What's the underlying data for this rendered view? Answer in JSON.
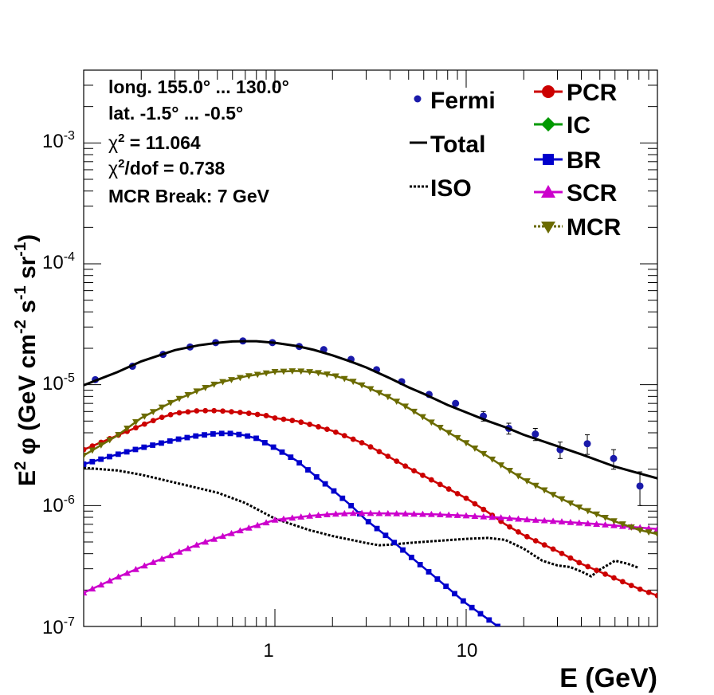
{
  "chart_data": {
    "type": "scatter",
    "xlabel": "E (GeV)",
    "ylabel": {
      "main": "E",
      "sup1": "2",
      "mid": " φ (GeV cm",
      "sup2": "-2",
      "mid2": " s",
      "sup3": "-1",
      "mid3": " sr",
      "sup4": "-1",
      "end": ")"
    },
    "xscale": "log",
    "yscale": "log",
    "xlim": [
      0.1,
      100
    ],
    "ylim": [
      1e-07,
      0.004
    ],
    "x_ticks": [
      {
        "value": 1,
        "label": "1"
      },
      {
        "value": 10,
        "label": "10"
      }
    ],
    "y_ticks": [
      {
        "value": 1e-07,
        "base": "10",
        "exp": "-7"
      },
      {
        "value": 1e-06,
        "base": "10",
        "exp": "-6"
      },
      {
        "value": 1e-05,
        "base": "10",
        "exp": "-5"
      },
      {
        "value": 0.0001,
        "base": "10",
        "exp": "-4"
      },
      {
        "value": 0.001,
        "base": "10",
        "exp": "-3"
      }
    ],
    "info": {
      "long": "long. 155.0° ... 130.0°",
      "lat": "lat. -1.5° ... -0.5°",
      "chi2_sym": "χ",
      "chi2_sup": "2",
      "chi2_rest": " = 11.064",
      "chidof_sym": "χ",
      "chidof_sup": "2",
      "chidof_rest": "/dof = 0.738",
      "mcr_break": "MCR Break:  7 GeV"
    },
    "legend_left": [
      {
        "label": "Fermi"
      },
      {
        "label": "Total"
      },
      {
        "label": "ISO"
      }
    ],
    "legend_right": [
      {
        "label": "PCR"
      },
      {
        "label": "IC"
      },
      {
        "label": "BR"
      },
      {
        "label": "SCR"
      },
      {
        "label": "MCR"
      }
    ],
    "series": [
      {
        "name": "Fermi",
        "color": "#1a1aaa",
        "points": [
          {
            "x": 0.115,
            "y": 1.1e-05,
            "err": 0
          },
          {
            "x": 0.18,
            "y": 1.42e-05,
            "err": 0
          },
          {
            "x": 0.26,
            "y": 1.78e-05,
            "err": 0
          },
          {
            "x": 0.36,
            "y": 2.05e-05,
            "err": 0
          },
          {
            "x": 0.49,
            "y": 2.23e-05,
            "err": 0
          },
          {
            "x": 0.68,
            "y": 2.3e-05,
            "err": 0
          },
          {
            "x": 0.97,
            "y": 2.23e-05,
            "err": 0
          },
          {
            "x": 1.34,
            "y": 2.07e-05,
            "err": 0
          },
          {
            "x": 1.8,
            "y": 1.95e-05,
            "err": 0
          },
          {
            "x": 2.5,
            "y": 1.62e-05,
            "err": 0
          },
          {
            "x": 3.4,
            "y": 1.33e-05,
            "err": 0
          },
          {
            "x": 4.6,
            "y": 1.06e-05,
            "err": 0
          },
          {
            "x": 6.4,
            "y": 8.3e-06,
            "err": 0
          },
          {
            "x": 8.8,
            "y": 7e-06,
            "err": 3e-07
          },
          {
            "x": 12.3,
            "y": 5.5e-06,
            "err": 5e-07
          },
          {
            "x": 16.7,
            "y": 4.35e-06,
            "err": 4.5e-07
          },
          {
            "x": 23.0,
            "y": 3.9e-06,
            "err": 4.5e-07
          },
          {
            "x": 31.0,
            "y": 2.9e-06,
            "err": 4.5e-07
          },
          {
            "x": 43.0,
            "y": 3.25e-06,
            "err": 6e-07
          },
          {
            "x": 59.0,
            "y": 2.45e-06,
            "err": 4.5e-07
          },
          {
            "x": 81.0,
            "y": 1.45e-06,
            "err": 4.5e-07
          }
        ]
      },
      {
        "name": "Total",
        "color": "#000000",
        "marker": "none",
        "x": [
          0.1,
          0.15,
          0.2,
          0.3,
          0.4,
          0.5,
          0.6,
          0.7,
          0.8,
          1.0,
          1.3,
          1.6,
          2.0,
          2.5,
          3.0,
          4.0,
          5.0,
          6.0,
          8.0,
          10,
          13,
          16,
          20,
          30,
          40,
          60,
          80,
          100
        ],
        "y": [
          9.9e-06,
          1.27e-05,
          1.56e-05,
          1.93e-05,
          2.12e-05,
          2.22e-05,
          2.28e-05,
          2.29e-05,
          2.29e-05,
          2.22e-05,
          2.09e-05,
          1.94e-05,
          1.75e-05,
          1.55e-05,
          1.39e-05,
          1.13e-05,
          9.5e-06,
          8.4e-06,
          6.8e-06,
          5.9e-06,
          5e-06,
          4.45e-06,
          3.85e-06,
          3.1e-06,
          2.65e-06,
          2.1e-06,
          1.85e-06,
          1.68e-06
        ]
      },
      {
        "name": "ISO",
        "color": "#000000",
        "marker": "none",
        "dash": "3,2",
        "x": [
          0.1,
          0.15,
          0.2,
          0.3,
          0.5,
          0.7,
          1.0,
          1.5,
          2.0,
          3.0,
          3.5,
          4.0,
          5.0,
          7.0,
          10.0,
          13.0,
          16.0,
          20.0,
          25.0,
          30.0,
          35.0,
          40.0,
          45.0,
          50.0,
          60.0,
          70.0,
          80.0
        ],
        "y": [
          2.05e-06,
          1.95e-06,
          1.8e-06,
          1.55e-06,
          1.28e-06,
          1.05e-06,
          7.8e-07,
          6.3e-07,
          5.6e-07,
          4.9e-07,
          4.7e-07,
          4.75e-07,
          4.9e-07,
          5.1e-07,
          5.3e-07,
          5.4e-07,
          5.2e-07,
          4.4e-07,
          3.5e-07,
          3.2e-07,
          3.1e-07,
          2.85e-07,
          2.6e-07,
          2.95e-07,
          3.5e-07,
          3.3e-07,
          3.05e-07
        ]
      },
      {
        "name": "PCR",
        "color": "#cc0000",
        "marker": "circle",
        "x": [
          0.1,
          0.15,
          0.2,
          0.25,
          0.3,
          0.4,
          0.5,
          0.7,
          0.9,
          1.0,
          1.3,
          1.6,
          2.0,
          2.5,
          3.0,
          4.0,
          5.0,
          7.0,
          10,
          13,
          16,
          20,
          30,
          40,
          60,
          80,
          100
        ],
        "y": [
          2.9e-06,
          3.8e-06,
          4.6e-06,
          5.3e-06,
          5.8e-06,
          6.1e-06,
          6.1e-06,
          5.85e-06,
          5.55e-06,
          5.3e-06,
          5e-06,
          4.6e-06,
          4.15e-06,
          3.6e-06,
          3.2e-06,
          2.5e-06,
          2.05e-06,
          1.55e-06,
          1.15e-06,
          8.8e-07,
          7e-07,
          5.7e-07,
          4.2e-07,
          3.3e-07,
          2.5e-07,
          2.05e-07,
          1.8e-07
        ]
      },
      {
        "name": "BR",
        "color": "#0000cc",
        "marker": "square",
        "x": [
          0.1,
          0.15,
          0.2,
          0.3,
          0.4,
          0.5,
          0.6,
          0.7,
          0.8,
          1.0,
          1.3,
          1.6,
          2.0,
          2.5,
          3.0,
          4.0,
          5.0,
          7.0,
          10,
          13,
          16,
          18
        ],
        "y": [
          2.2e-06,
          2.65e-06,
          3e-06,
          3.5e-06,
          3.8e-06,
          3.95e-06,
          3.95e-06,
          3.8e-06,
          3.6e-06,
          3e-06,
          2.35e-06,
          1.8e-06,
          1.35e-06,
          1e-06,
          7.6e-07,
          5.3e-07,
          3.9e-07,
          2.5e-07,
          1.55e-07,
          1.15e-07,
          9e-08,
          8e-08
        ]
      },
      {
        "name": "SCR",
        "color": "#cc00cc",
        "marker": "triangle",
        "x": [
          0.1,
          0.15,
          0.2,
          0.3,
          0.4,
          0.5,
          0.7,
          1.0,
          1.5,
          2.0,
          2.5,
          3.0,
          4.0,
          5.0,
          7.0,
          10,
          15,
          20,
          30,
          50,
          70,
          100
        ],
        "y": [
          1.9e-07,
          2.55e-07,
          3.1e-07,
          4e-07,
          4.8e-07,
          5.4e-07,
          6.4e-07,
          7.6e-07,
          8.2e-07,
          8.5e-07,
          8.65e-07,
          8.65e-07,
          8.6e-07,
          8.55e-07,
          8.45e-07,
          8.25e-07,
          7.95e-07,
          7.7e-07,
          7.4e-07,
          7e-07,
          6.7e-07,
          6.4e-07
        ]
      },
      {
        "name": "MCR",
        "color": "#6b6b00",
        "marker": "invtriangle",
        "x": [
          0.1,
          0.15,
          0.2,
          0.3,
          0.4,
          0.5,
          0.7,
          1.0,
          1.3,
          1.6,
          2.0,
          2.5,
          3.0,
          4.0,
          5.0,
          7.0,
          10,
          13,
          16,
          20,
          30,
          40,
          60,
          80,
          100
        ],
        "y": [
          2.6e-06,
          3.8e-06,
          5.3e-06,
          7.4e-06,
          9e-06,
          1.03e-05,
          1.17e-05,
          1.28e-05,
          1.3e-05,
          1.27e-05,
          1.2e-05,
          1.08e-05,
          9.6e-06,
          7.8e-06,
          6.4e-06,
          4.6e-06,
          3.3e-06,
          2.55e-06,
          2.05e-06,
          1.65e-06,
          1.18e-06,
          9.5e-07,
          7.4e-07,
          6.3e-07,
          5.8e-07
        ]
      }
    ]
  }
}
